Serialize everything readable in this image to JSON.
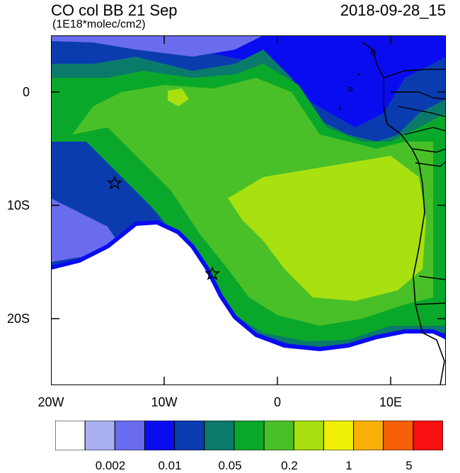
{
  "title": {
    "left": "CO col BB 21 Sep",
    "units": "(1E18*molec/cm2)",
    "right": "2018-09-28_15"
  },
  "map": {
    "lat_ticks": [
      "0",
      "10S",
      "20S"
    ],
    "lon_ticks": [
      "20W",
      "10W",
      "0",
      "10E"
    ],
    "markers": [
      "star-marker-west",
      "star-marker-coast"
    ]
  },
  "colorbar": {
    "colors": [
      "#ffffff",
      "#aab0f0",
      "#6a6cf0",
      "#0a0cf0",
      "#0a3cb0",
      "#0a7a6a",
      "#0aa82a",
      "#4ac028",
      "#a8e010",
      "#f0f008",
      "#f8b008",
      "#f86008",
      "#f81010"
    ],
    "labels": [
      "0.002",
      "0.01",
      "0.05",
      "0.2",
      "1",
      "5"
    ]
  }
}
